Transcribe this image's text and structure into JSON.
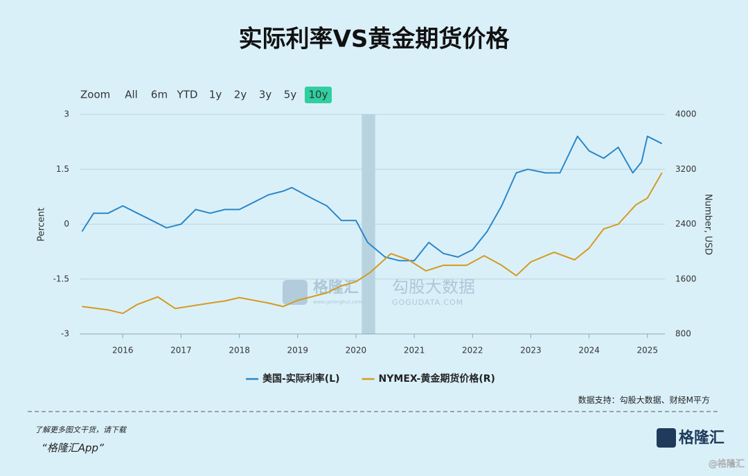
{
  "chart_data": {
    "type": "line",
    "title": "实际利率VS黄金期货价格",
    "y_label": "Percent",
    "y2_label": "Number, USD",
    "xlim": [
      2015.26,
      2025.3
    ],
    "xticks": [
      2016,
      2017,
      2018,
      2019,
      2020,
      2021,
      2022,
      2023,
      2024,
      2025
    ],
    "ylim": [
      -3,
      3
    ],
    "yticks": [
      3,
      1.5,
      0,
      -1.5,
      -3
    ],
    "y2lim": [
      800,
      4000
    ],
    "y2ticks": [
      4000,
      3200,
      2400,
      1600,
      800
    ],
    "grid": true,
    "legend": "bottom",
    "shade": [
      2020.1,
      2020.33
    ],
    "series": [
      {
        "name": "美国-实际利率(L)",
        "color": "#2a87c8",
        "x": [
          2015.3,
          2015.5,
          2015.75,
          2016.0,
          2016.25,
          2016.5,
          2016.75,
          2017.0,
          2017.25,
          2017.5,
          2017.75,
          2018.0,
          2018.25,
          2018.5,
          2018.75,
          2018.9,
          2019.25,
          2019.5,
          2019.75,
          2020.0,
          2020.2,
          2020.5,
          2020.75,
          2021.0,
          2021.25,
          2021.5,
          2021.75,
          2022.0,
          2022.25,
          2022.5,
          2022.75,
          2022.95,
          2023.25,
          2023.5,
          2023.8,
          2024.0,
          2024.25,
          2024.5,
          2024.75,
          2024.9,
          2025.0,
          2025.25
        ],
        "values": [
          -0.2,
          0.3,
          0.3,
          0.5,
          0.3,
          0.1,
          -0.1,
          0.0,
          0.4,
          0.3,
          0.4,
          0.4,
          0.6,
          0.8,
          0.9,
          1.0,
          0.7,
          0.5,
          0.1,
          0.1,
          -0.5,
          -0.9,
          -1.0,
          -1.0,
          -0.5,
          -0.8,
          -0.9,
          -0.7,
          -0.2,
          0.5,
          1.4,
          1.5,
          1.4,
          1.4,
          2.4,
          2.0,
          1.8,
          2.1,
          1.4,
          1.7,
          2.4,
          2.2
        ]
      },
      {
        "name": "NYMEX-黄金期货价格(R)",
        "color": "#d49a1f",
        "axis": "y2",
        "x": [
          2015.3,
          2015.75,
          2016.0,
          2016.25,
          2016.6,
          2016.9,
          2017.5,
          2017.75,
          2018.0,
          2018.5,
          2018.75,
          2019.0,
          2019.5,
          2019.75,
          2020.0,
          2020.25,
          2020.6,
          2020.9,
          2021.2,
          2021.5,
          2021.9,
          2022.2,
          2022.5,
          2022.75,
          2023.0,
          2023.4,
          2023.75,
          2024.0,
          2024.25,
          2024.5,
          2024.8,
          2025.0,
          2025.25
        ],
        "values": [
          1200,
          1150,
          1100,
          1230,
          1340,
          1170,
          1250,
          1280,
          1330,
          1250,
          1200,
          1290,
          1400,
          1500,
          1560,
          1700,
          1970,
          1880,
          1720,
          1800,
          1800,
          1940,
          1800,
          1650,
          1850,
          1990,
          1880,
          2050,
          2330,
          2400,
          2680,
          2780,
          3150
        ]
      }
    ]
  },
  "range_selector": {
    "label": "Zoom",
    "buttons": [
      "All",
      "6m",
      "YTD",
      "1y",
      "2y",
      "3y",
      "5y",
      "10y"
    ],
    "active": 7
  },
  "watermark": {
    "brand": "格隆汇",
    "brand_url": "www.gelonghui.com",
    "source_brand": "勾股大数据",
    "source_url": "GOGUDATA.COM"
  },
  "source": "数据支持：勾股大数据、财经M平方",
  "footer": {
    "line1": "了解更多图文干货，请下载",
    "line2": "“格隆汇App”",
    "logo": "格隆汇",
    "corner": "@格隆汇"
  }
}
